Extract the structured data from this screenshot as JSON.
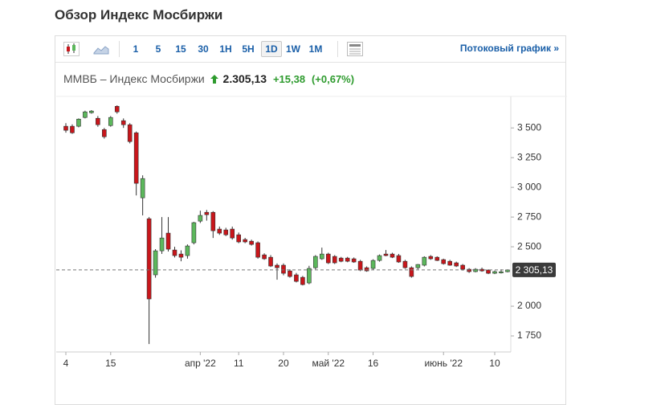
{
  "header": {
    "title": "Обзор Индекс Мосбиржи"
  },
  "toolbar": {
    "intervals": [
      "1",
      "5",
      "15",
      "30",
      "1H",
      "5H",
      "1D",
      "1W",
      "1M"
    ],
    "streaming_link": "Потоковый график »"
  },
  "quote": {
    "name": "ММВБ – Индекс Мосбиржи",
    "price": "2.305,13",
    "change": "+15,38",
    "change_percent": "(+0,67%)"
  },
  "chart_data": {
    "type": "candlestick",
    "categories": [
      "4",
      null,
      null,
      null,
      null,
      null,
      null,
      "15",
      null,
      null,
      null,
      null,
      null,
      null,
      null,
      null,
      null,
      null,
      null,
      null,
      null,
      "апр '22",
      null,
      null,
      null,
      null,
      null,
      "11",
      null,
      null,
      null,
      null,
      null,
      null,
      "20",
      null,
      null,
      null,
      null,
      null,
      null,
      "май '22",
      null,
      null,
      null,
      null,
      null,
      null,
      "16",
      null,
      null,
      null,
      null,
      null,
      null,
      null,
      null,
      null,
      null,
      "июнь '22",
      null,
      null,
      null,
      null,
      null,
      null,
      null,
      "10",
      null,
      null
    ],
    "open": [
      3514,
      3514,
      3514,
      3588,
      3628,
      3581,
      3486,
      3520,
      3682,
      3561,
      3527,
      3459,
      2912,
      2736,
      2264,
      2466,
      2615,
      2473,
      2439,
      2426,
      2534,
      2716,
      2790,
      2790,
      2649,
      2642,
      2649,
      2601,
      2561,
      2547,
      2534,
      2432,
      2412,
      2345,
      2345,
      2297,
      2264,
      2243,
      2196,
      2324,
      2399,
      2439,
      2419,
      2405,
      2405,
      2399,
      2378,
      2324,
      2318,
      2385,
      2439,
      2439,
      2426,
      2378,
      2324,
      2324,
      2345,
      2419,
      2412,
      2392,
      2378,
      2365,
      2345,
      2311,
      2291,
      2311,
      2304,
      2277,
      2280,
      2290
    ],
    "high": [
      3540,
      3530,
      3580,
      3645,
      3650,
      3600,
      3500,
      3600,
      3690,
      3580,
      3540,
      3470,
      3101,
      2750,
      2480,
      2750,
      2750,
      2500,
      2470,
      2520,
      2710,
      2804,
      2810,
      2800,
      2670,
      2660,
      2670,
      2620,
      2575,
      2560,
      2545,
      2445,
      2430,
      2360,
      2360,
      2310,
      2280,
      2255,
      2340,
      2430,
      2493,
      2450,
      2430,
      2415,
      2415,
      2410,
      2390,
      2335,
      2395,
      2435,
      2473,
      2450,
      2440,
      2390,
      2335,
      2355,
      2420,
      2430,
      2420,
      2400,
      2390,
      2375,
      2355,
      2320,
      2320,
      2325,
      2310,
      2300,
      2310,
      2310
    ],
    "low": [
      3460,
      3450,
      3505,
      3580,
      3620,
      3510,
      3410,
      3510,
      3620,
      3500,
      3370,
      2932,
      2764,
      1682,
      2240,
      2440,
      2460,
      2410,
      2378,
      2400,
      2520,
      2700,
      2720,
      2574,
      2600,
      2590,
      2560,
      2530,
      2530,
      2510,
      2400,
      2390,
      2330,
      2223,
      2260,
      2240,
      2200,
      2175,
      2185,
      2310,
      2390,
      2355,
      2355,
      2370,
      2370,
      2365,
      2295,
      2290,
      2305,
      2375,
      2420,
      2405,
      2365,
      2315,
      2240,
      2310,
      2335,
      2390,
      2380,
      2350,
      2340,
      2330,
      2300,
      2280,
      2285,
      2290,
      2270,
      2270,
      2275,
      2285
    ],
    "close": [
      3480,
      3459,
      3574,
      3635,
      3642,
      3527,
      3426,
      3588,
      3635,
      3527,
      3385,
      3034,
      3074,
      2061,
      2466,
      2574,
      2480,
      2426,
      2412,
      2507,
      2703,
      2764,
      2770,
      2635,
      2615,
      2601,
      2574,
      2541,
      2541,
      2520,
      2412,
      2399,
      2338,
      2324,
      2277,
      2250,
      2209,
      2182,
      2318,
      2419,
      2439,
      2365,
      2365,
      2378,
      2378,
      2372,
      2304,
      2297,
      2385,
      2426,
      2426,
      2412,
      2372,
      2324,
      2250,
      2351,
      2412,
      2399,
      2385,
      2358,
      2345,
      2338,
      2311,
      2291,
      2311,
      2297,
      2277,
      2291,
      2290,
      2305.13
    ],
    "up_color": "#5cb85c",
    "down_color": "#c9161b",
    "ylim": [
      1615,
      3765
    ],
    "yticks": [
      {
        "value": 1750,
        "label": "1 750"
      },
      {
        "value": 2000,
        "label": "2 000"
      },
      {
        "value": 2500,
        "label": "2 500"
      },
      {
        "value": 2750,
        "label": "2 750"
      },
      {
        "value": 3000,
        "label": "3 000"
      },
      {
        "value": 3250,
        "label": "3 250"
      },
      {
        "value": 3500,
        "label": "3 500"
      }
    ],
    "last_value": 2305.13,
    "last_label": "2 305,13"
  }
}
